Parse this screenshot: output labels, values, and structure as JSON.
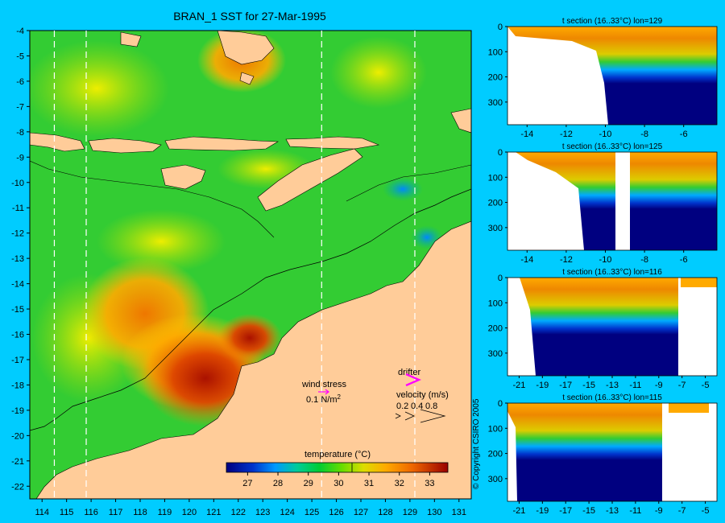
{
  "title": "BRAN_1 SST for 27-Mar-1995",
  "copyright": "© Copyright CSIRO 2005",
  "map": {
    "lon_range": [
      113.5,
      131.5
    ],
    "lat_range": [
      -22.5,
      -4
    ],
    "lon_ticks": [
      114,
      115,
      116,
      117,
      118,
      119,
      120,
      121,
      122,
      123,
      124,
      125,
      126,
      127,
      128,
      129,
      130,
      131
    ],
    "lat_ticks": [
      -4,
      -5,
      -6,
      -7,
      -8,
      -9,
      -10,
      -11,
      -12,
      -13,
      -14,
      -15,
      -16,
      -17,
      -18,
      -19,
      -20,
      -21,
      -22
    ],
    "section_lines_lon": [
      114.5,
      115.8,
      125.4,
      129.2
    ],
    "colors": {
      "land": "#ffcc99",
      "ocean_base": "#33cc33",
      "warm": "#cc3300",
      "cold": "#0066ff"
    }
  },
  "legend": {
    "wind_stress_label": "wind stress",
    "wind_stress_value": "0.1 N/m",
    "wind_stress_sup": "2",
    "drifter_label": "drifter",
    "velocity_label": "velocity (m/s)",
    "velocity_values": [
      "0.2",
      "0.4",
      "0.8"
    ],
    "colorbar_label": "temperature (°C)",
    "colorbar_ticks": [
      "27",
      "28",
      "29",
      "30",
      "31",
      "32",
      "33"
    ],
    "colorbar_range": [
      26.3,
      33.6
    ]
  },
  "sections": [
    {
      "title": "t section (16..33°C) lon=129",
      "x_ticks": [
        "-14",
        "-12",
        "-10",
        "-8",
        "-6"
      ],
      "x_range": [
        -15,
        -4.3
      ],
      "y_ticks": [
        "0",
        "100",
        "200",
        "300"
      ]
    },
    {
      "title": "t section (16..33°C) lon=125",
      "x_ticks": [
        "-14",
        "-12",
        "-10",
        "-8",
        "-6"
      ],
      "x_range": [
        -15,
        -4.3
      ],
      "y_ticks": [
        "0",
        "100",
        "200",
        "300"
      ]
    },
    {
      "title": "t section (16..33°C) lon=116",
      "x_ticks": [
        "-21",
        "-19",
        "-17",
        "-15",
        "-13",
        "-11",
        "-9",
        "-7",
        "-5"
      ],
      "x_range": [
        -22,
        -4
      ],
      "y_ticks": [
        "0",
        "100",
        "200",
        "300"
      ]
    },
    {
      "title": "t section (16..33°C) lon=115",
      "x_ticks": [
        "-21",
        "-19",
        "-17",
        "-15",
        "-13",
        "-11",
        "-9",
        "-7",
        "-5"
      ],
      "x_range": [
        -22,
        -4
      ],
      "y_ticks": [
        "0",
        "100",
        "200",
        "300"
      ]
    }
  ]
}
